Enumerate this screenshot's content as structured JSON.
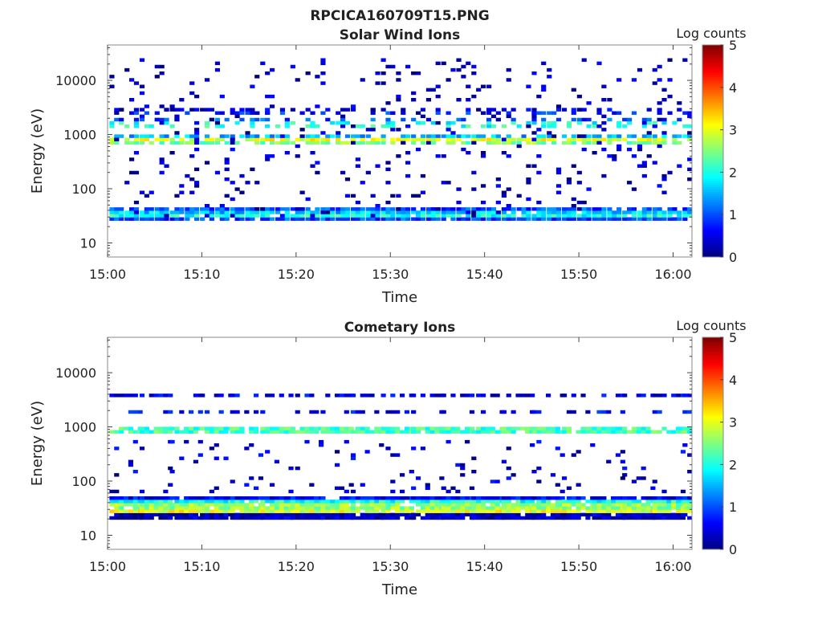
{
  "figure_title": "RPCICA160709T15.PNG",
  "colors": {
    "colormap": [
      "#00007f",
      "#0000ff",
      "#007fff",
      "#00ffff",
      "#7fff7f",
      "#ffff00",
      "#ff7f00",
      "#ff0000",
      "#7f0000"
    ]
  },
  "chart_data": [
    {
      "type": "heatmap",
      "title": "Solar Wind Ions",
      "xlabel": "Time",
      "ylabel": "Energy (eV)",
      "xscale": "time",
      "yscale": "log",
      "xlim": [
        "15:00",
        "16:02"
      ],
      "ylim": [
        5.5,
        45000
      ],
      "x_ticks": [
        "15:00",
        "15:10",
        "15:20",
        "15:30",
        "15:40",
        "15:50",
        "16:00"
      ],
      "y_ticks": [
        "10",
        "100",
        "1000",
        "10000"
      ],
      "colorbar": {
        "label": "Log counts",
        "range": [
          0,
          5
        ],
        "ticks": [
          "0",
          "1",
          "2",
          "3",
          "4",
          "5"
        ]
      },
      "sweep_minutes": 1.6,
      "sweep_start_minutes": 0.2,
      "bands": [
        {
          "e_min": 25,
          "e_max": 48,
          "levels": [
            1.0,
            2.0,
            1.6,
            1.0,
            0.5
          ],
          "density": 0.92
        },
        {
          "e_min": 680,
          "e_max": 980,
          "levels": [
            2.5,
            3.0,
            1.5
          ],
          "density": 0.75
        },
        {
          "e_min": 1400,
          "e_max": 2000,
          "levels": [
            2.0,
            1.0
          ],
          "density": 0.35
        },
        {
          "e_min": 2400,
          "e_max": 3200,
          "levels": [
            0.8,
            0.4
          ],
          "density": 0.4
        },
        {
          "e_min": 30,
          "e_max": 25000,
          "levels": [
            0.3
          ],
          "density": 0.06
        }
      ]
    },
    {
      "type": "heatmap",
      "title": "Cometary Ions",
      "xlabel": "Time",
      "ylabel": "Energy (eV)",
      "xscale": "time",
      "yscale": "log",
      "xlim": [
        "15:00",
        "16:02"
      ],
      "ylim": [
        5.5,
        45000
      ],
      "x_ticks": [
        "15:00",
        "15:10",
        "15:20",
        "15:30",
        "15:40",
        "15:50",
        "16:00"
      ],
      "y_ticks": [
        "10",
        "100",
        "1000",
        "10000"
      ],
      "colorbar": {
        "label": "Log counts",
        "range": [
          0,
          5
        ],
        "ticks": [
          "0",
          "1",
          "2",
          "3",
          "4",
          "5"
        ]
      },
      "sweep_minutes": 3.2,
      "sweep_start_minutes": 0.2,
      "bands": [
        {
          "e_min": 19,
          "e_max": 56,
          "levels": [
            0.3,
            3.0,
            2.6,
            2.0,
            0.6
          ],
          "density": 0.95
        },
        {
          "e_min": 800,
          "e_max": 960,
          "levels": [
            2.2
          ],
          "density": 0.85
        },
        {
          "e_min": 1700,
          "e_max": 2000,
          "levels": [
            0.6
          ],
          "density": 0.4
        },
        {
          "e_min": 3400,
          "e_max": 3900,
          "levels": [
            0.5
          ],
          "density": 0.6
        },
        {
          "e_min": 60,
          "e_max": 600,
          "levels": [
            0.4
          ],
          "density": 0.05
        }
      ]
    }
  ]
}
